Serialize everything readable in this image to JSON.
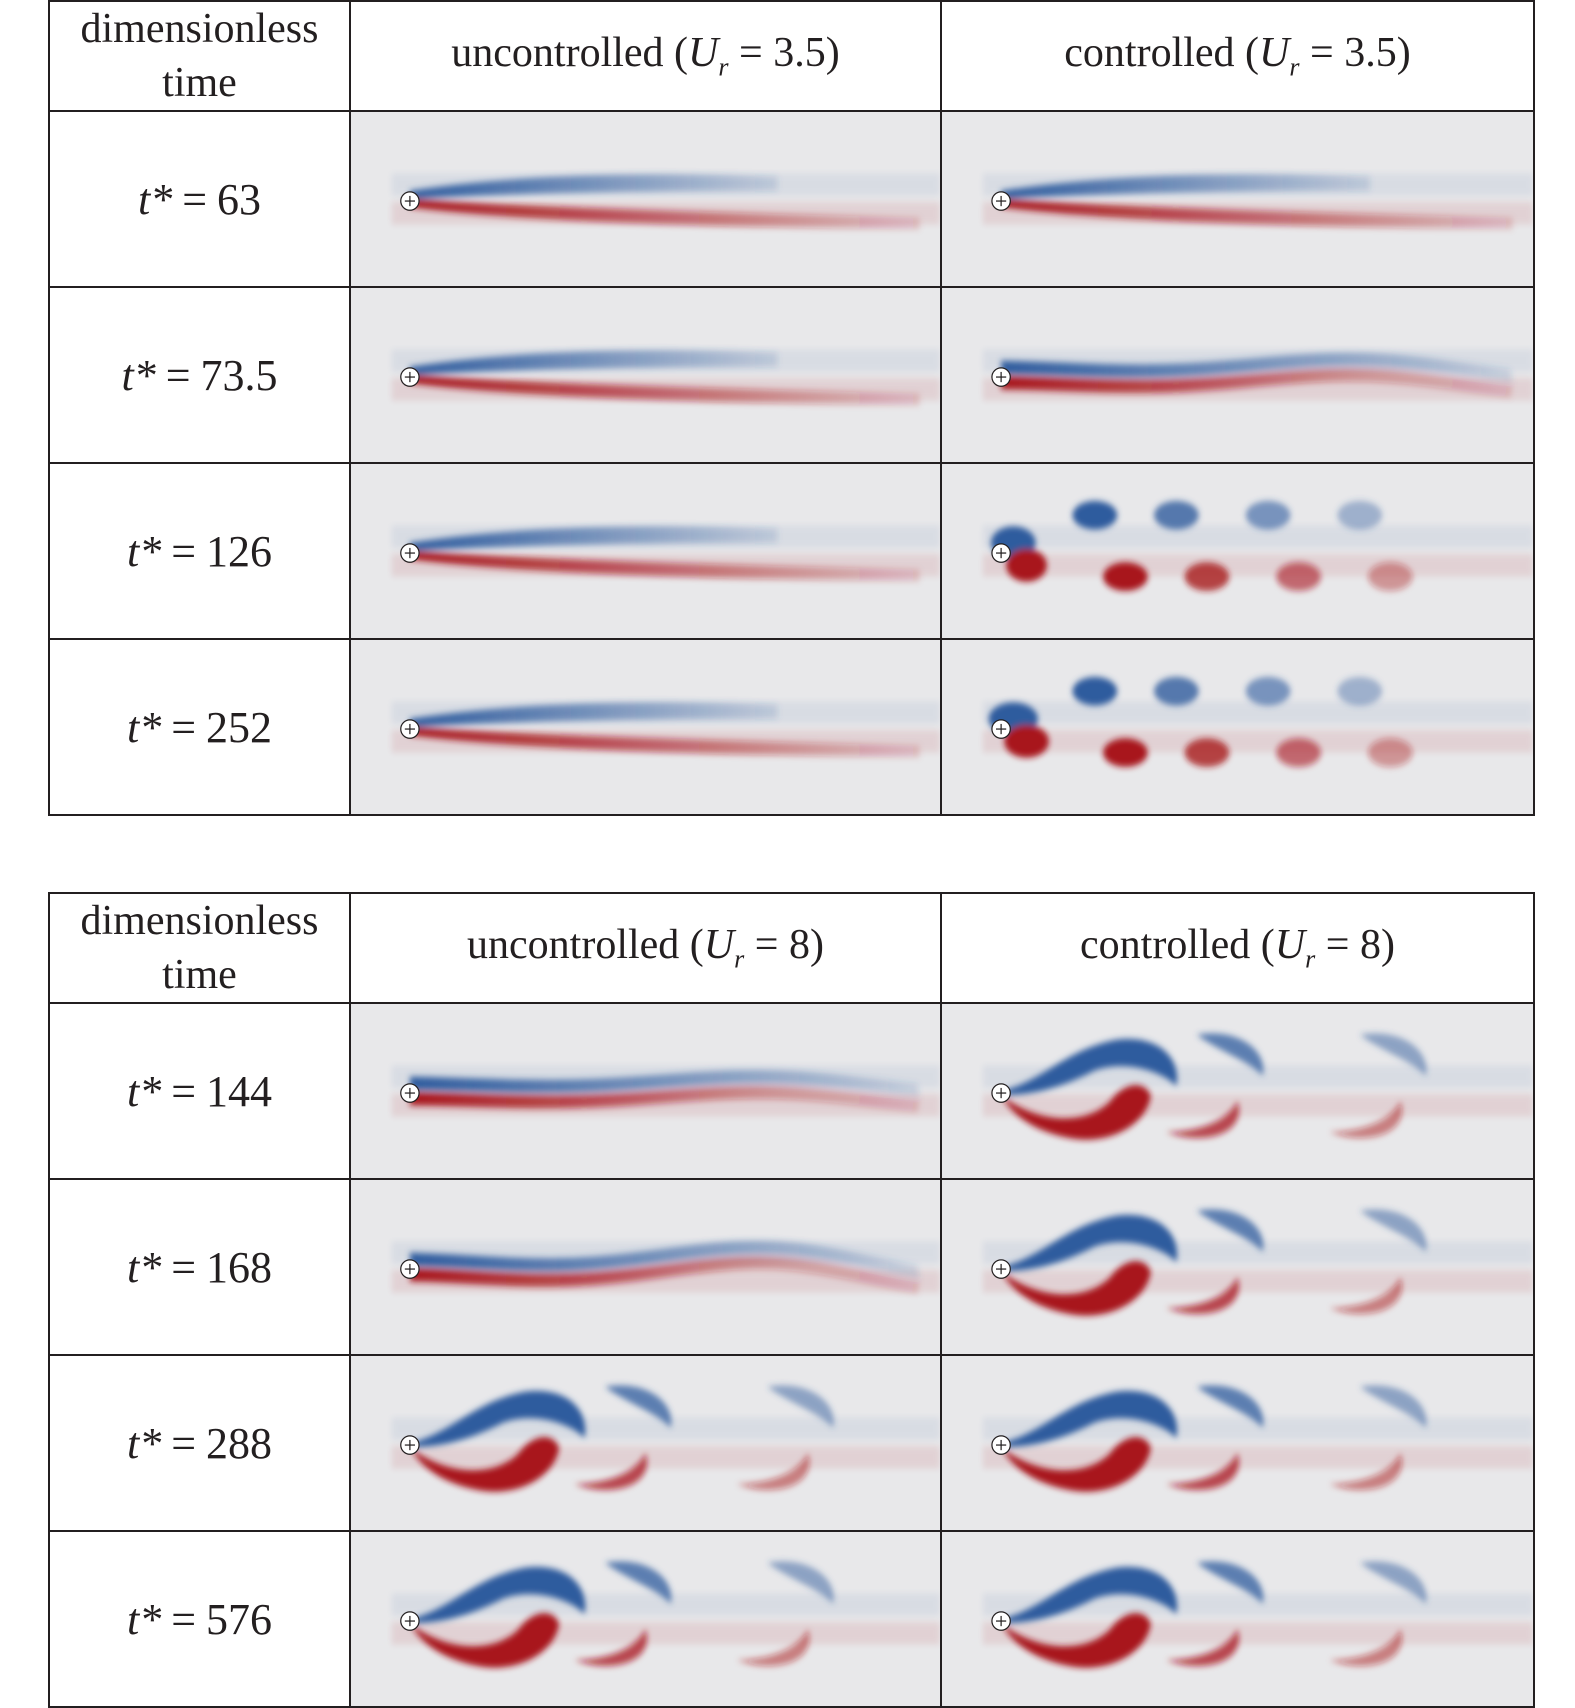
{
  "tables": [
    {
      "header": {
        "col0": "dimensionless time",
        "col1_prefix": "uncontrolled (",
        "col1_var": "U",
        "col1_sub": "r",
        "col1_suffix": " = 3.5)",
        "col2_prefix": "controlled (",
        "col2_var": "U",
        "col2_sub": "r",
        "col2_suffix": " = 3.5)"
      },
      "rows": [
        {
          "var": "t*",
          "value": "63"
        },
        {
          "var": "t*",
          "value": "73.5"
        },
        {
          "var": "t*",
          "value": "126"
        },
        {
          "var": "t*",
          "value": "252"
        }
      ]
    },
    {
      "header": {
        "col0": "dimensionless time",
        "col1_prefix": "uncontrolled (",
        "col1_var": "U",
        "col1_sub": "r",
        "col1_suffix": " = 8)",
        "col2_prefix": "controlled (",
        "col2_var": "U",
        "col2_sub": "r",
        "col2_suffix": " = 8)"
      },
      "rows": [
        {
          "var": "t*",
          "value": "144"
        },
        {
          "var": "t*",
          "value": "168"
        },
        {
          "var": "t*",
          "value": "288"
        },
        {
          "var": "t*",
          "value": "576"
        }
      ]
    }
  ],
  "colors": {
    "negative_vorticity": "#2f5c9e",
    "positive_vorticity": "#a8161c",
    "background": "#e8e8ea",
    "border": "#231f20"
  }
}
